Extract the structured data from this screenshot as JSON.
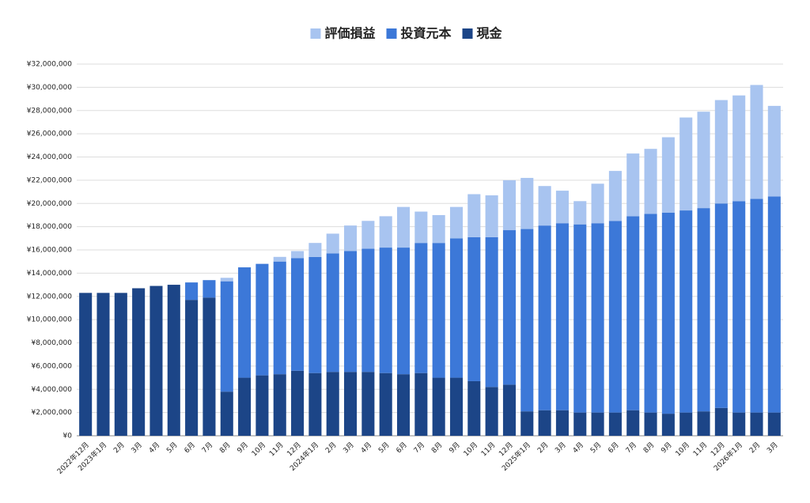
{
  "chart_data": {
    "type": "stacked-bar",
    "categories": [
      "2022年12月",
      "2023年1月",
      "2月",
      "3月",
      "4月",
      "5月",
      "6月",
      "7月",
      "8月",
      "9月",
      "10月",
      "11月",
      "12月",
      "2024年1月",
      "2月",
      "3月",
      "4月",
      "5月",
      "6月",
      "7月",
      "8月",
      "9月",
      "10月",
      "11月",
      "12月",
      "2025年1月",
      "2月",
      "3月",
      "4月",
      "5月",
      "6月",
      "7月",
      "8月",
      "9月",
      "10月",
      "11月",
      "12月",
      "2026年1月",
      "2月",
      "3月"
    ],
    "series": [
      {
        "name": "評価損益",
        "color": "#a8c4f0",
        "values": [
          0,
          0,
          0,
          0,
          0,
          0,
          0,
          0,
          300000,
          0,
          0,
          400000,
          600000,
          1200000,
          1700000,
          2200000,
          2400000,
          2700000,
          3500000,
          2700000,
          2400000,
          2700000,
          3700000,
          3600000,
          4300000,
          4400000,
          3400000,
          2800000,
          2000000,
          3400000,
          4300000,
          5400000,
          5600000,
          6500000,
          8000000,
          8300000,
          8900000,
          9100000,
          9800000,
          7800000
        ]
      },
      {
        "name": "投資元本",
        "color": "#3c78d8",
        "values": [
          0,
          0,
          0,
          0,
          0,
          0,
          1500000,
          1500000,
          9500000,
          9500000,
          9600000,
          9700000,
          9700000,
          10000000,
          10200000,
          10400000,
          10600000,
          10800000,
          10900000,
          11200000,
          11600000,
          12000000,
          12400000,
          12900000,
          13300000,
          15700000,
          15900000,
          16100000,
          16200000,
          16300000,
          16500000,
          16700000,
          17100000,
          17300000,
          17400000,
          17500000,
          17600000,
          18200000,
          18400000,
          18600000
        ]
      },
      {
        "name": "現金",
        "color": "#1c4587",
        "values": [
          12300000,
          12300000,
          12300000,
          12700000,
          12900000,
          13000000,
          11700000,
          11900000,
          3800000,
          5000000,
          5200000,
          5300000,
          5600000,
          5400000,
          5500000,
          5500000,
          5500000,
          5400000,
          5300000,
          5400000,
          5000000,
          5000000,
          4700000,
          4200000,
          4400000,
          2100000,
          2200000,
          2200000,
          2000000,
          2000000,
          2000000,
          2200000,
          2000000,
          1900000,
          2000000,
          2100000,
          2400000,
          2000000,
          2000000,
          2000000
        ]
      }
    ],
    "ylim": [
      0,
      32000000
    ],
    "yticks": [
      {
        "value": 0,
        "label": "¥0"
      },
      {
        "value": 2000000,
        "label": "¥2,000,000"
      },
      {
        "value": 4000000,
        "label": "¥4,000,000"
      },
      {
        "value": 6000000,
        "label": "¥6,000,000"
      },
      {
        "value": 8000000,
        "label": "¥8,000,000"
      },
      {
        "value": 10000000,
        "label": "¥10,000,000"
      },
      {
        "value": 12000000,
        "label": "¥12,000,000"
      },
      {
        "value": 14000000,
        "label": "¥14,000,000"
      },
      {
        "value": 16000000,
        "label": "¥16,000,000"
      },
      {
        "value": 18000000,
        "label": "¥18,000,000"
      },
      {
        "value": 20000000,
        "label": "¥20,000,000"
      },
      {
        "value": 22000000,
        "label": "¥22,000,000"
      },
      {
        "value": 24000000,
        "label": "¥24,000,000"
      },
      {
        "value": 26000000,
        "label": "¥26,000,000"
      },
      {
        "value": 28000000,
        "label": "¥28,000,000"
      },
      {
        "value": 30000000,
        "label": "¥30,000,000"
      },
      {
        "value": 32000000,
        "label": "¥32,000,000"
      }
    ],
    "grid": true,
    "legend": "top"
  }
}
